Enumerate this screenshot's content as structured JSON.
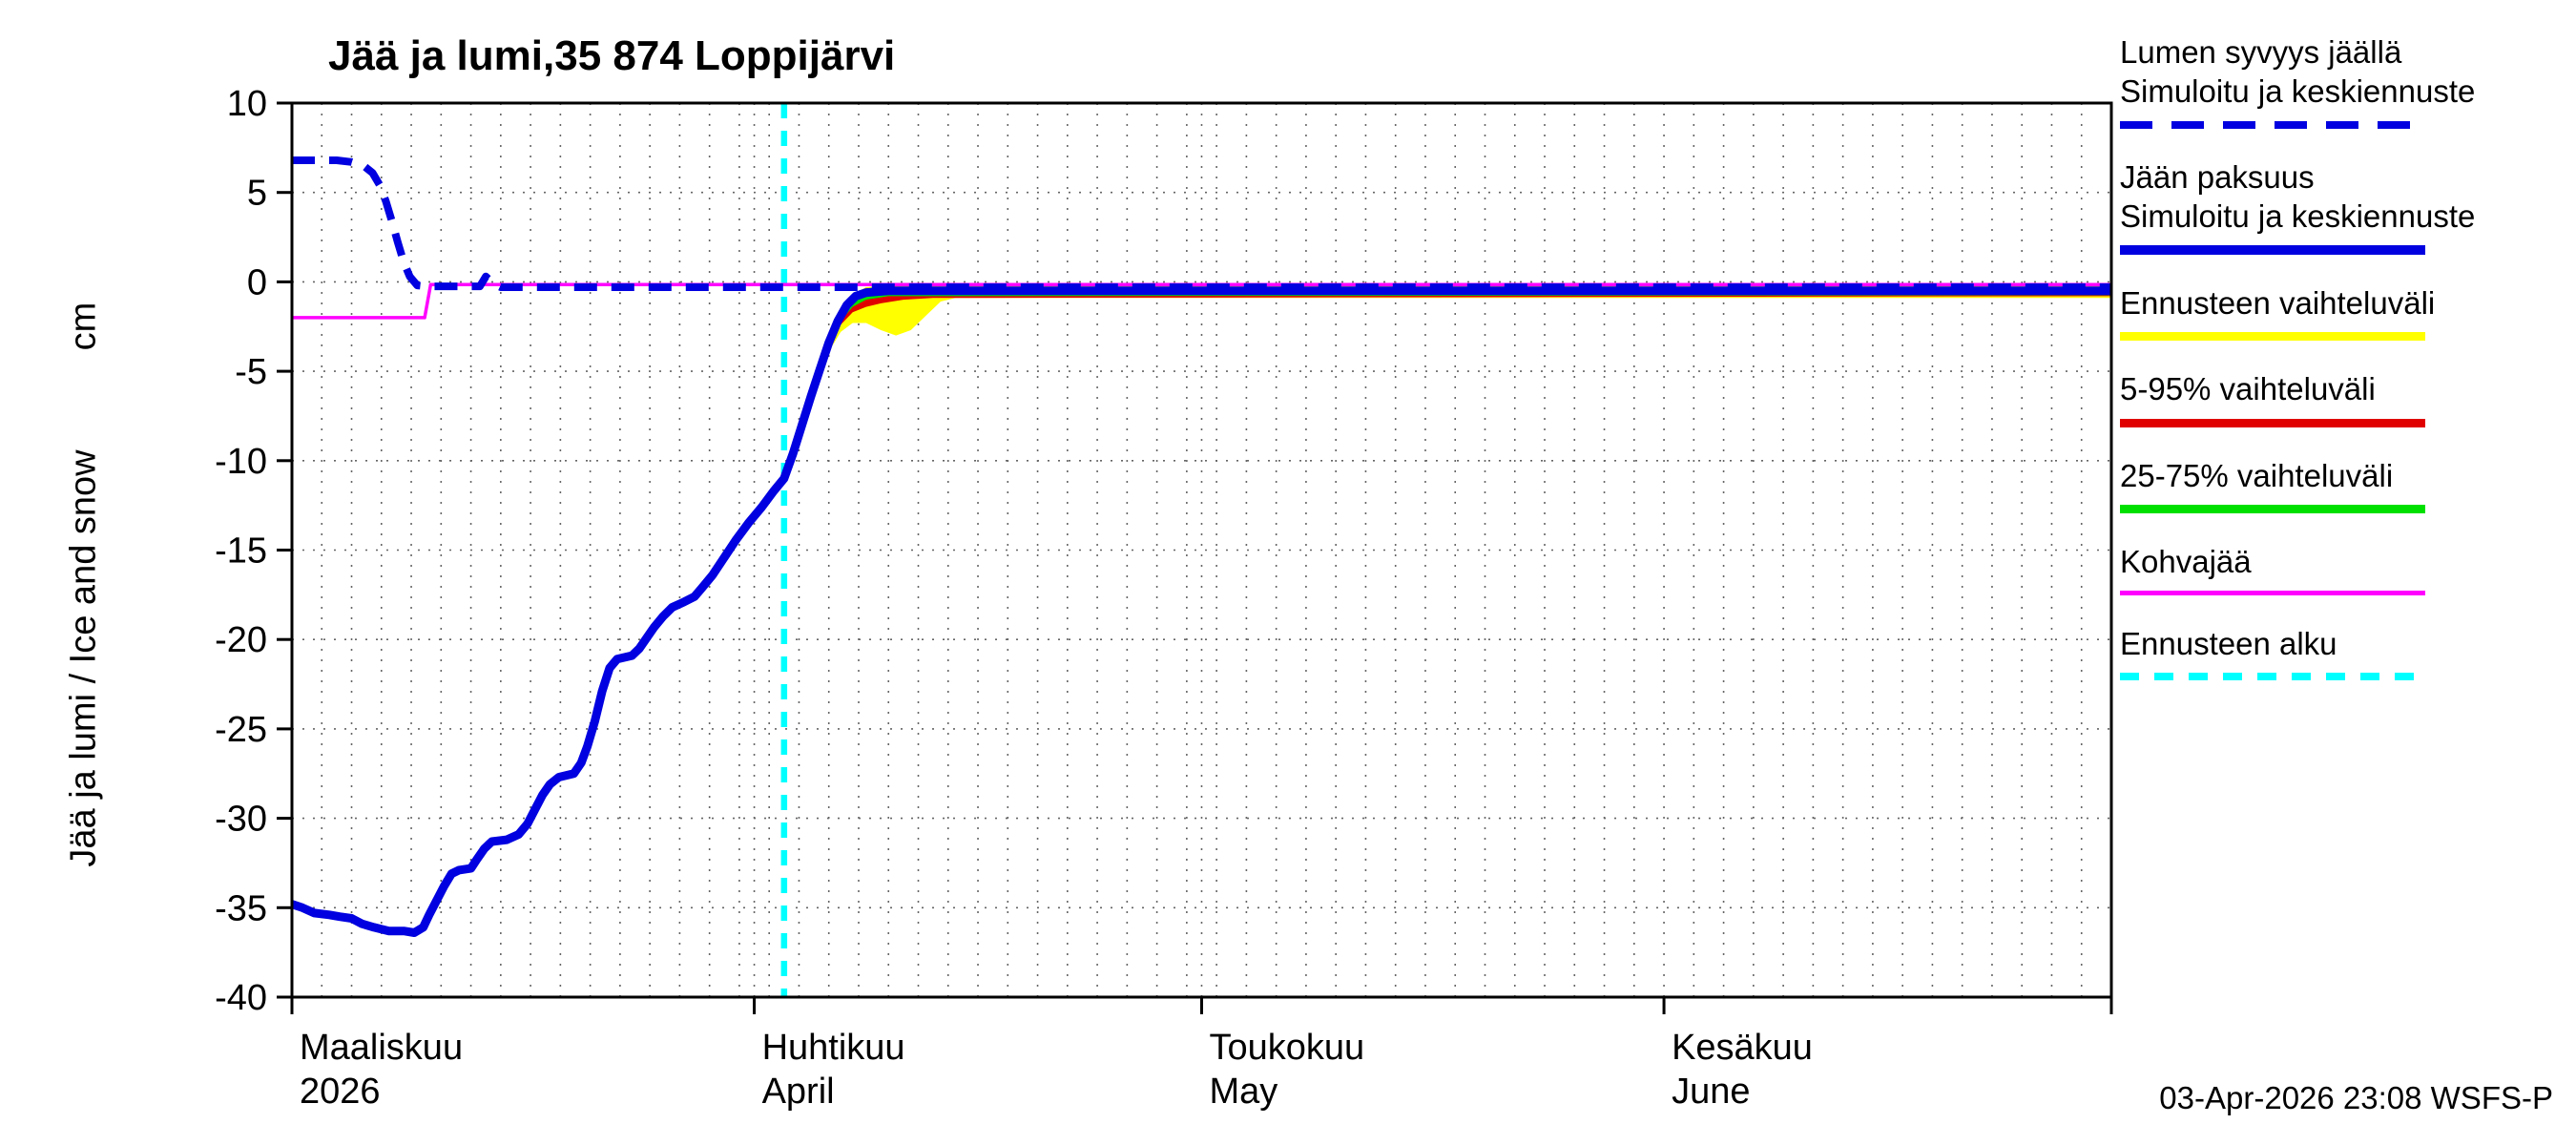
{
  "title": "Jää ja lumi,35 874 Loppijärvi",
  "y_axis": {
    "label": "Jää ja lumi / Ice and snow",
    "unit": "cm"
  },
  "footer": {
    "timestamp": "03-Apr-2026 23:08 WSFS-P"
  },
  "colors": {
    "simulated_blue": "#0000e0",
    "forecast_range_yellow": "#ffff00",
    "range_5_95_red": "#e00000",
    "range_25_75_green": "#00e000",
    "kohvajaa_magenta": "#ff00ff",
    "forecast_start_cyan": "#00ffff",
    "grid": "#666666"
  },
  "legend": [
    {
      "lines": [
        "Lumen syvyys jäällä",
        "Simuloitu ja keskiennuste"
      ],
      "sample": {
        "color": "#0000e0",
        "dash": [
          34,
          20
        ],
        "width": 8
      }
    },
    {
      "lines": [
        "Jään paksuus",
        "Simuloitu ja keskiennuste"
      ],
      "sample": {
        "color": "#0000e0",
        "dash": null,
        "width": 10
      }
    },
    {
      "lines": [
        "Ennusteen vaihteluväli"
      ],
      "sample": {
        "color": "#ffff00",
        "dash": null,
        "width": 9
      }
    },
    {
      "lines": [
        "5-95% vaihteluväli"
      ],
      "sample": {
        "color": "#e00000",
        "dash": null,
        "width": 9
      }
    },
    {
      "lines": [
        "25-75% vaihteluväli"
      ],
      "sample": {
        "color": "#00e000",
        "dash": null,
        "width": 9
      }
    },
    {
      "lines": [
        "Kohvajää"
      ],
      "sample": {
        "color": "#ff00ff",
        "dash": null,
        "width": 5
      }
    },
    {
      "lines": [
        "Ennusteen alku"
      ],
      "sample": {
        "color": "#00ffff",
        "dash": [
          20,
          16
        ],
        "width": 8
      }
    }
  ],
  "chart_data": {
    "type": "line",
    "title": "Jää ja lumi,35 874 Loppijärvi",
    "ylabel": "Jää ja lumi / Ice and snow (cm)",
    "ylim": [
      -40,
      10
    ],
    "yticks": [
      10,
      5,
      0,
      -5,
      -10,
      -15,
      -20,
      -25,
      -30,
      -35,
      -40
    ],
    "x_domain_days": [
      0,
      122
    ],
    "x_note": "day 0 = 1 March 2026, day 31 = 1 April, day 61 = 1 May, day 92 = 1 June",
    "grid": true,
    "legend_position": "right",
    "xticks": [
      {
        "day": 0,
        "label1": "Maaliskuu",
        "label2": "2026"
      },
      {
        "day": 31,
        "label1": "Huhtikuu",
        "label2": "April"
      },
      {
        "day": 61,
        "label1": "Toukokuu",
        "label2": "May"
      },
      {
        "day": 92,
        "label1": "Kesäkuu",
        "label2": "June"
      }
    ],
    "forecast_start": {
      "name": "Ennusteen alku",
      "day": 33,
      "color": "#00ffff"
    },
    "bands": [
      {
        "key": "ennusteen-vaihteluvali",
        "name": "Ennusteen vaihteluväli",
        "color": "#ffff00",
        "upper": [
          [
            33,
            -10.8
          ],
          [
            34,
            -8.0
          ],
          [
            35,
            -5.4
          ],
          [
            36,
            -3.0
          ],
          [
            36.8,
            -1.6
          ],
          [
            37.6,
            -0.7
          ],
          [
            38.5,
            -0.3
          ],
          [
            40,
            -0.2
          ],
          [
            122,
            -0.2
          ]
        ],
        "lower": [
          [
            33,
            -11.2
          ],
          [
            34,
            -8.6
          ],
          [
            35,
            -6.2
          ],
          [
            36,
            -3.9
          ],
          [
            36.8,
            -2.8
          ],
          [
            37.6,
            -2.3
          ],
          [
            38.5,
            -2.3
          ],
          [
            39.5,
            -2.7
          ],
          [
            40.5,
            -3.0
          ],
          [
            41.5,
            -2.7
          ],
          [
            42.5,
            -1.9
          ],
          [
            43.5,
            -1.1
          ],
          [
            44.5,
            -0.9
          ],
          [
            122,
            -0.9
          ]
        ]
      },
      {
        "key": "5-95-vaihteluvali",
        "name": "5-95% vaihteluväli",
        "color": "#e00000",
        "upper": [
          [
            33,
            -10.9
          ],
          [
            34,
            -8.1
          ],
          [
            35,
            -5.5
          ],
          [
            36,
            -3.1
          ],
          [
            36.8,
            -1.8
          ],
          [
            37.6,
            -0.9
          ],
          [
            38.5,
            -0.4
          ],
          [
            40,
            -0.3
          ],
          [
            122,
            -0.3
          ]
        ],
        "lower": [
          [
            33,
            -11.1
          ],
          [
            34,
            -8.5
          ],
          [
            35,
            -6.0
          ],
          [
            36,
            -3.6
          ],
          [
            36.8,
            -2.4
          ],
          [
            37.6,
            -1.7
          ],
          [
            38.5,
            -1.4
          ],
          [
            39.5,
            -1.2
          ],
          [
            41,
            -1.0
          ],
          [
            43,
            -0.9
          ],
          [
            122,
            -0.8
          ]
        ]
      },
      {
        "key": "25-75-vaihteluvali",
        "name": "25-75% vaihteluväli",
        "color": "#00e000",
        "upper": [
          [
            33,
            -11.0
          ],
          [
            34,
            -8.2
          ],
          [
            35,
            -5.7
          ],
          [
            36,
            -3.2
          ],
          [
            36.8,
            -2.0
          ],
          [
            37.6,
            -1.1
          ],
          [
            38.5,
            -0.5
          ],
          [
            40,
            -0.4
          ],
          [
            122,
            -0.35
          ]
        ],
        "lower": [
          [
            33,
            -11.0
          ],
          [
            34,
            -8.4
          ],
          [
            35,
            -5.9
          ],
          [
            36,
            -3.4
          ],
          [
            36.8,
            -2.2
          ],
          [
            37.6,
            -1.4
          ],
          [
            38.5,
            -1.0
          ],
          [
            40,
            -0.8
          ],
          [
            122,
            -0.75
          ]
        ]
      }
    ],
    "series": [
      {
        "key": "kohvajaa",
        "name": "Kohvajää",
        "color": "#ff00ff",
        "width": 3.5,
        "dash": null,
        "points": [
          [
            0,
            -2.0
          ],
          [
            8.9,
            -2.0
          ],
          [
            9.3,
            -0.15
          ],
          [
            122,
            -0.15
          ]
        ]
      },
      {
        "key": "lumen-syvyys",
        "name": "Lumen syvyys jäällä, simuloitu ja keskiennuste",
        "color": "#0000e0",
        "width": 8,
        "dash": [
          24,
          15
        ],
        "points": [
          [
            0,
            6.8
          ],
          [
            1,
            6.8
          ],
          [
            2,
            6.8
          ],
          [
            3,
            6.8
          ],
          [
            4,
            6.7
          ],
          [
            4.8,
            6.5
          ],
          [
            5.4,
            6.1
          ],
          [
            5.9,
            5.4
          ],
          [
            6.3,
            4.5
          ],
          [
            6.7,
            3.4
          ],
          [
            7.1,
            2.2
          ],
          [
            7.5,
            1.1
          ],
          [
            7.9,
            0.3
          ],
          [
            8.4,
            -0.2
          ],
          [
            9,
            -0.25
          ],
          [
            12.6,
            -0.25
          ],
          [
            13,
            0.3
          ],
          [
            13.5,
            -0.1
          ],
          [
            14,
            -0.3
          ],
          [
            33,
            -0.3
          ],
          [
            122,
            -0.3
          ]
        ]
      },
      {
        "key": "jaan-paksuus",
        "name": "Jään paksuus, simuloitu ja keskiennuste",
        "color": "#0000e0",
        "width": 9,
        "dash": null,
        "points": [
          [
            0,
            -34.8
          ],
          [
            0.7,
            -35.0
          ],
          [
            1.5,
            -35.3
          ],
          [
            2.5,
            -35.4
          ],
          [
            3.2,
            -35.5
          ],
          [
            4,
            -35.6
          ],
          [
            4.7,
            -35.9
          ],
          [
            5.5,
            -36.1
          ],
          [
            6.5,
            -36.3
          ],
          [
            7.5,
            -36.3
          ],
          [
            8.2,
            -36.4
          ],
          [
            8.8,
            -36.1
          ],
          [
            9.2,
            -35.4
          ],
          [
            9.7,
            -34.6
          ],
          [
            10.2,
            -33.8
          ],
          [
            10.7,
            -33.1
          ],
          [
            11.2,
            -32.9
          ],
          [
            12,
            -32.8
          ],
          [
            12.4,
            -32.3
          ],
          [
            12.9,
            -31.7
          ],
          [
            13.4,
            -31.3
          ],
          [
            14.4,
            -31.2
          ],
          [
            15.2,
            -30.9
          ],
          [
            15.8,
            -30.3
          ],
          [
            16.3,
            -29.5
          ],
          [
            16.8,
            -28.7
          ],
          [
            17.3,
            -28.1
          ],
          [
            17.9,
            -27.7
          ],
          [
            18.9,
            -27.5
          ],
          [
            19.4,
            -26.9
          ],
          [
            19.8,
            -26.0
          ],
          [
            20.3,
            -24.6
          ],
          [
            20.8,
            -22.9
          ],
          [
            21.3,
            -21.6
          ],
          [
            21.8,
            -21.1
          ],
          [
            22.8,
            -20.9
          ],
          [
            23.3,
            -20.5
          ],
          [
            23.8,
            -19.9
          ],
          [
            24.3,
            -19.3
          ],
          [
            24.9,
            -18.7
          ],
          [
            25.5,
            -18.2
          ],
          [
            26.3,
            -17.9
          ],
          [
            27,
            -17.6
          ],
          [
            27.5,
            -17.1
          ],
          [
            28.2,
            -16.4
          ],
          [
            29,
            -15.4
          ],
          [
            29.8,
            -14.4
          ],
          [
            30.6,
            -13.5
          ],
          [
            31.5,
            -12.6
          ],
          [
            32.3,
            -11.7
          ],
          [
            33,
            -11.0
          ],
          [
            33.6,
            -9.6
          ],
          [
            34.2,
            -8.0
          ],
          [
            34.8,
            -6.4
          ],
          [
            35.4,
            -4.9
          ],
          [
            36,
            -3.4
          ],
          [
            36.6,
            -2.2
          ],
          [
            37.2,
            -1.3
          ],
          [
            37.8,
            -0.8
          ],
          [
            38.5,
            -0.6
          ],
          [
            40,
            -0.5
          ],
          [
            122,
            -0.5
          ]
        ]
      }
    ]
  }
}
